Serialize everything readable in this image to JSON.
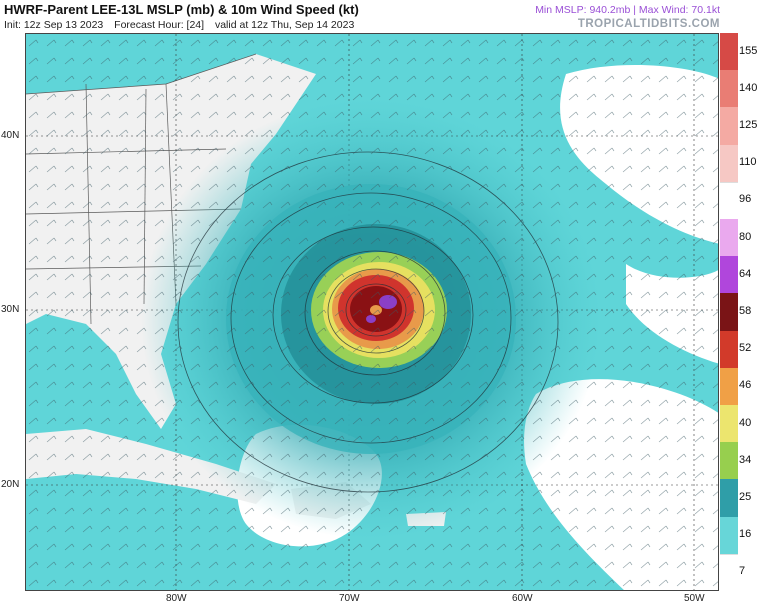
{
  "header": {
    "title": "HWRF-Parent LEE-13L MSLP (mb) & 10m Wind Speed (kt)",
    "init": "Init: 12z Sep 13 2023",
    "forecast_hour": "Forecast Hour: [24]",
    "valid": "valid at 12z Thu, Sep 14 2023",
    "stats": "Min MSLP: 940.2mb | Max Wind: 70.1kt",
    "brand": "TROPICALTIDBITS.COM"
  },
  "axes": {
    "lat_labels": [
      "40N",
      "30N",
      "20N"
    ],
    "lon_labels": [
      "80W",
      "70W",
      "60W",
      "50W"
    ]
  },
  "colorbar": {
    "labels": [
      "155",
      "140",
      "125",
      "110",
      "96",
      "80",
      "64",
      "58",
      "52",
      "46",
      "40",
      "34",
      "25",
      "16",
      "7"
    ],
    "colors": [
      "#d64a46",
      "#e97d74",
      "#f4aaa3",
      "#f6c8c4",
      "#ffffff",
      "#eaa9ee",
      "#b046dc",
      "#7a1416",
      "#d23a2a",
      "#f0a046",
      "#ece56e",
      "#97cf4e",
      "#2f9ea8",
      "#67d6d8",
      "#ffffff"
    ]
  },
  "map_colors": {
    "ocean": "#ffffff",
    "weak_wind": "#5fd5d8",
    "moderate_wind": "#37b3ba",
    "strong_wind": "#238f98",
    "ts_wind": "#98d057",
    "hurricane_wind": "#e6e060",
    "cat_wind": "#d0342d",
    "core": "#8a1114",
    "max": "#8b3fc7",
    "land": "#f1f1f1"
  }
}
